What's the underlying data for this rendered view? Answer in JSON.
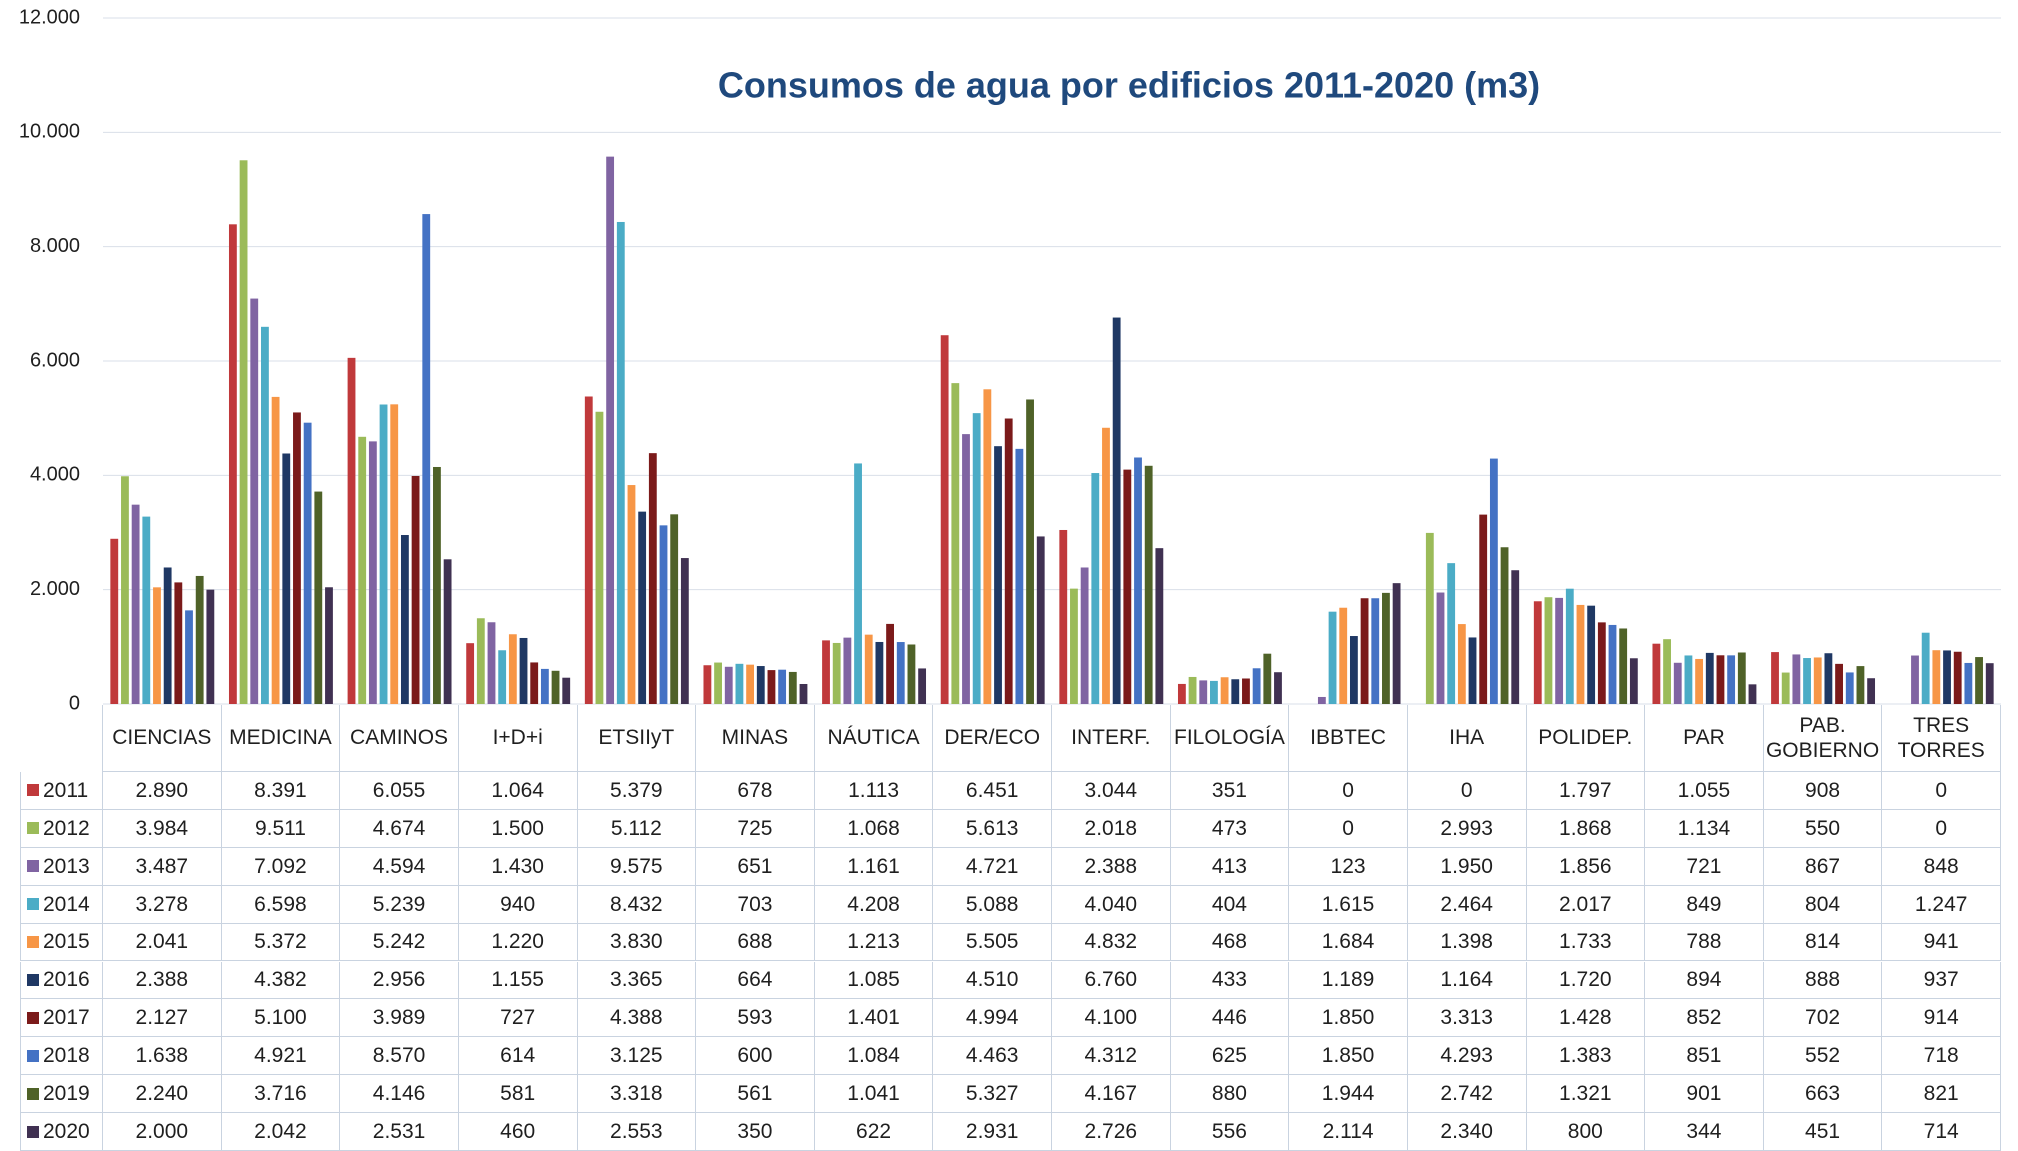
{
  "chart_data": {
    "type": "bar",
    "title": "Consumos de agua por edificios 2011-2020 (m3)",
    "categories": [
      "CIENCIAS",
      "MEDICINA",
      "CAMINOS",
      "I+D+i",
      "ETSIIyT",
      "MINAS",
      "NÁUTICA",
      "DER/ECO",
      "INTERF.",
      "FILOLOGÍA",
      "IBBTEC",
      "IHA",
      "POLIDEP.",
      "PAR",
      "PAB. GOBIERNO",
      "TRES TORRES"
    ],
    "ylim": [
      0,
      12000
    ],
    "yticks": [
      0,
      {
        "value": 2000,
        "label": "2.000"
      },
      {
        "value": 4000,
        "label": "4.000"
      },
      {
        "value": 6000,
        "label": "6.000"
      },
      {
        "value": 8000,
        "label": "8.000"
      },
      {
        "value": 10000,
        "label": "10.000"
      },
      {
        "value": 12000,
        "label": "12.000"
      }
    ],
    "grid": true,
    "series": [
      {
        "name": "2011",
        "color": "#c0393b",
        "values": [
          2890,
          8391,
          6055,
          1064,
          5379,
          678,
          1113,
          6451,
          3044,
          351,
          0,
          0,
          1797,
          1055,
          908,
          0
        ],
        "value_labels": [
          "2.890",
          "8.391",
          "6.055",
          "1.064",
          "5.379",
          "678",
          "1.113",
          "6.451",
          "3.044",
          "351",
          "0",
          "0",
          "1.797",
          "1.055",
          "908",
          "0"
        ]
      },
      {
        "name": "2012",
        "color": "#9bbb59",
        "values": [
          3984,
          9511,
          4674,
          1500,
          5112,
          725,
          1068,
          5613,
          2018,
          473,
          0,
          2993,
          1868,
          1134,
          550,
          0
        ],
        "value_labels": [
          "3.984",
          "9.511",
          "4.674",
          "1.500",
          "5.112",
          "725",
          "1.068",
          "5.613",
          "2.018",
          "473",
          "0",
          "2.993",
          "1.868",
          "1.134",
          "550",
          "0"
        ]
      },
      {
        "name": "2013",
        "color": "#8064a2",
        "values": [
          3487,
          7092,
          4594,
          1430,
          9575,
          651,
          1161,
          4721,
          2388,
          413,
          123,
          1950,
          1856,
          721,
          867,
          848
        ],
        "value_labels": [
          "3.487",
          "7.092",
          "4.594",
          "1.430",
          "9.575",
          "651",
          "1.161",
          "4.721",
          "2.388",
          "413",
          "123",
          "1.950",
          "1.856",
          "721",
          "867",
          "848"
        ]
      },
      {
        "name": "2014",
        "color": "#4bacc6",
        "values": [
          3278,
          6598,
          5239,
          940,
          8432,
          703,
          4208,
          5088,
          4040,
          404,
          1615,
          2464,
          2017,
          849,
          804,
          1247
        ],
        "value_labels": [
          "3.278",
          "6.598",
          "5.239",
          "940",
          "8.432",
          "703",
          "4.208",
          "5.088",
          "4.040",
          "404",
          "1.615",
          "2.464",
          "2.017",
          "849",
          "804",
          "1.247"
        ]
      },
      {
        "name": "2015",
        "color": "#f79646",
        "values": [
          2041,
          5372,
          5242,
          1220,
          3830,
          688,
          1213,
          5505,
          4832,
          468,
          1684,
          1398,
          1733,
          788,
          814,
          941
        ],
        "value_labels": [
          "2.041",
          "5.372",
          "5.242",
          "1.220",
          "3.830",
          "688",
          "1.213",
          "5.505",
          "4.832",
          "468",
          "1.684",
          "1.398",
          "1.733",
          "788",
          "814",
          "941"
        ]
      },
      {
        "name": "2016",
        "color": "#1f3864",
        "values": [
          2388,
          4382,
          2956,
          1155,
          3365,
          664,
          1085,
          4510,
          6760,
          433,
          1189,
          1164,
          1720,
          894,
          888,
          937
        ],
        "value_labels": [
          "2.388",
          "4.382",
          "2.956",
          "1.155",
          "3.365",
          "664",
          "1.085",
          "4.510",
          "6.760",
          "433",
          "1.189",
          "1.164",
          "1.720",
          "894",
          "888",
          "937"
        ]
      },
      {
        "name": "2017",
        "color": "#7b1a1a",
        "values": [
          2127,
          5100,
          3989,
          727,
          4388,
          593,
          1401,
          4994,
          4100,
          446,
          1850,
          3313,
          1428,
          852,
          702,
          914
        ],
        "value_labels": [
          "2.127",
          "5.100",
          "3.989",
          "727",
          "4.388",
          "593",
          "1.401",
          "4.994",
          "4.100",
          "446",
          "1.850",
          "3.313",
          "1.428",
          "852",
          "702",
          "914"
        ]
      },
      {
        "name": "2018",
        "color": "#4472c4",
        "values": [
          1638,
          4921,
          8570,
          614,
          3125,
          600,
          1084,
          4463,
          4312,
          625,
          1850,
          4293,
          1383,
          851,
          552,
          718
        ],
        "value_labels": [
          "1.638",
          "4.921",
          "8.570",
          "614",
          "3.125",
          "600",
          "1.084",
          "4.463",
          "4.312",
          "625",
          "1.850",
          "4.293",
          "1.383",
          "851",
          "552",
          "718"
        ]
      },
      {
        "name": "2019",
        "color": "#4f6228",
        "values": [
          2240,
          3716,
          4146,
          581,
          3318,
          561,
          1041,
          5327,
          4167,
          880,
          1944,
          2742,
          1321,
          901,
          663,
          821
        ],
        "value_labels": [
          "2.240",
          "3.716",
          "4.146",
          "581",
          "3.318",
          "561",
          "1.041",
          "5.327",
          "4.167",
          "880",
          "1.944",
          "2.742",
          "1.321",
          "901",
          "663",
          "821"
        ]
      },
      {
        "name": "2020",
        "color": "#403152",
        "values": [
          2000,
          2042,
          2531,
          460,
          2553,
          350,
          622,
          2931,
          2726,
          556,
          2114,
          2340,
          800,
          344,
          451,
          714
        ],
        "value_labels": [
          "2.000",
          "2.042",
          "2.531",
          "460",
          "2.553",
          "350",
          "622",
          "2.931",
          "2.726",
          "556",
          "2.114",
          "2.340",
          "800",
          "344",
          "451",
          "714"
        ]
      }
    ]
  }
}
